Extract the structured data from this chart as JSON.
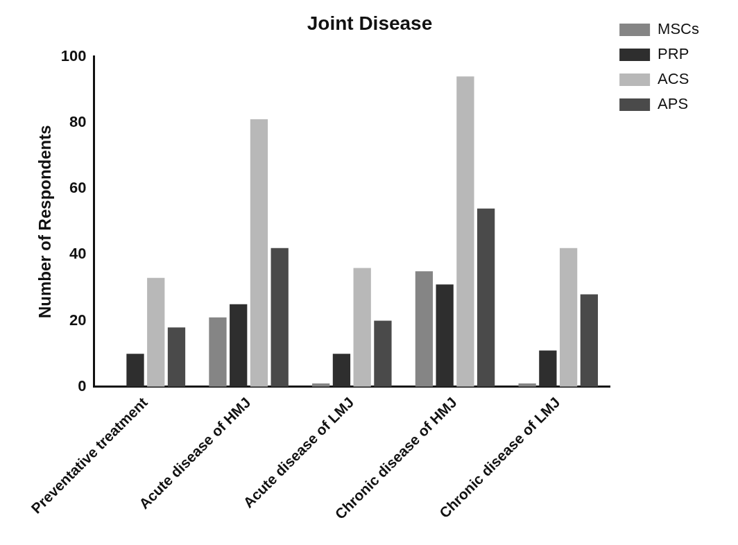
{
  "chart_data": {
    "type": "bar",
    "title": "Joint Disease",
    "ylabel": "Number of Respondents",
    "categories": [
      "Preventative treatment",
      "Acute disease of HMJ",
      "Acute disease of LMJ",
      "Chronic disease of HMJ",
      "Chronic disease of LMJ"
    ],
    "series": [
      {
        "name": "MSCs",
        "color": "#858585",
        "values": [
          0,
          21,
          1,
          35,
          1
        ]
      },
      {
        "name": "PRP",
        "color": "#2e2e2e",
        "values": [
          10,
          25,
          10,
          31,
          11
        ]
      },
      {
        "name": "ACS",
        "color": "#b8b8b8",
        "values": [
          33,
          81,
          36,
          94,
          42
        ]
      },
      {
        "name": "APS",
        "color": "#4a4a4a",
        "values": [
          18,
          42,
          20,
          54,
          28
        ]
      }
    ],
    "ylim": [
      0,
      100
    ],
    "yticks": [
      0,
      20,
      40,
      60,
      80,
      100
    ],
    "grid": false,
    "legend": "top right"
  }
}
